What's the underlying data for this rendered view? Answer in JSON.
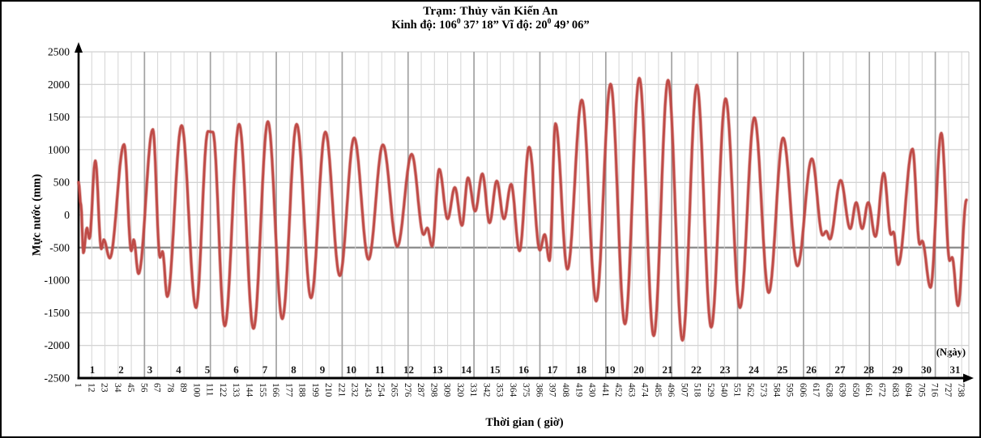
{
  "header": {
    "title": "Trạm:  Thủy văn Kiến An",
    "subtitle": {
      "pre": "Kinh độ: 106",
      "sup1": "0",
      "mid": " 37’ 18” Vĩ độ:  20",
      "sup2": "0",
      "end": " 49’ 06”"
    }
  },
  "y_axis": {
    "title": "Mực nước (mm)",
    "ticks": [
      2500,
      2000,
      1500,
      1000,
      500,
      0,
      -500,
      -1000,
      -1500,
      -2000,
      -2500
    ],
    "emphasized_gridline_value": -500
  },
  "x_axis": {
    "title": "Thời gian ( giờ)",
    "day_unit_label": "(Ngày)",
    "hour_ticks": [
      1,
      12,
      23,
      34,
      45,
      56,
      67,
      78,
      89,
      100,
      111,
      122,
      133,
      144,
      155,
      166,
      177,
      188,
      199,
      210,
      221,
      232,
      243,
      254,
      265,
      276,
      287,
      298,
      309,
      320,
      331,
      342,
      353,
      364,
      375,
      386,
      397,
      408,
      419,
      430,
      441,
      452,
      463,
      474,
      485,
      496,
      507,
      518,
      529,
      540,
      551,
      562,
      573,
      584,
      595,
      606,
      617,
      628,
      639,
      650,
      661,
      672,
      683,
      694,
      705,
      716,
      727,
      738
    ],
    "day_labels": [
      1,
      2,
      3,
      4,
      5,
      6,
      7,
      8,
      9,
      10,
      11,
      12,
      13,
      14,
      15,
      16,
      17,
      18,
      19,
      20,
      21,
      22,
      23,
      24,
      25,
      26,
      27,
      28,
      29,
      30,
      31
    ]
  },
  "chart_data": {
    "type": "line",
    "title": "Trạm: Thủy văn Kiến An",
    "xlabel": "Thời gian ( giờ)",
    "ylabel": "Mực nước (mm)",
    "xlim": [
      1,
      744
    ],
    "ylim": [
      -2500,
      2500
    ],
    "x_tick_interval_hours": 11,
    "x_major_grid_every_ticks": 5,
    "y_tick_interval": 500,
    "grid": true,
    "legend": false,
    "line_color": "#bf4b47",
    "grid_minor_color": "#d4d4d4",
    "grid_major_color": "#a2a2a2",
    "grid_emphasis_color": "#8f8f8f",
    "series": [
      {
        "name": "Mực nước (mm)",
        "points_hour_mm": [
          [
            1,
            500
          ],
          [
            3,
            150
          ],
          [
            5,
            -580
          ],
          [
            8,
            -200
          ],
          [
            10,
            -360
          ],
          [
            15,
            830
          ],
          [
            20,
            -520
          ],
          [
            22,
            -380
          ],
          [
            27,
            -660
          ],
          [
            39,
            1080
          ],
          [
            45,
            -550
          ],
          [
            47,
            -380
          ],
          [
            51,
            -900
          ],
          [
            63,
            1310
          ],
          [
            69,
            -650
          ],
          [
            71,
            -560
          ],
          [
            75,
            -1250
          ],
          [
            87,
            1370
          ],
          [
            99,
            -1420
          ],
          [
            109,
            1280
          ],
          [
            113,
            1270
          ],
          [
            123,
            -1700
          ],
          [
            135,
            1390
          ],
          [
            147,
            -1740
          ],
          [
            159,
            1430
          ],
          [
            171,
            -1590
          ],
          [
            183,
            1390
          ],
          [
            195,
            -1270
          ],
          [
            207,
            1270
          ],
          [
            219,
            -930
          ],
          [
            231,
            1180
          ],
          [
            243,
            -680
          ],
          [
            255,
            1075
          ],
          [
            267,
            -480
          ],
          [
            279,
            930
          ],
          [
            289,
            -300
          ],
          [
            292,
            -200
          ],
          [
            296,
            -480
          ],
          [
            302,
            700
          ],
          [
            309,
            -60
          ],
          [
            315,
            420
          ],
          [
            321,
            -160
          ],
          [
            326,
            570
          ],
          [
            332,
            60
          ],
          [
            338,
            630
          ],
          [
            344,
            -120
          ],
          [
            350,
            520
          ],
          [
            356,
            -60
          ],
          [
            362,
            470
          ],
          [
            369,
            -550
          ],
          [
            377,
            1040
          ],
          [
            386,
            -540
          ],
          [
            390,
            -300
          ],
          [
            394,
            -700
          ],
          [
            399,
            1400
          ],
          [
            409,
            -830
          ],
          [
            421,
            1760
          ],
          [
            433,
            -1320
          ],
          [
            445,
            2005
          ],
          [
            457,
            -1670
          ],
          [
            469,
            2095
          ],
          [
            481,
            -1850
          ],
          [
            493,
            2065
          ],
          [
            505,
            -1920
          ],
          [
            517,
            1990
          ],
          [
            529,
            -1720
          ],
          [
            541,
            1780
          ],
          [
            553,
            -1420
          ],
          [
            565,
            1490
          ],
          [
            577,
            -1190
          ],
          [
            589,
            1180
          ],
          [
            601,
            -780
          ],
          [
            613,
            860
          ],
          [
            622,
            -310
          ],
          [
            625,
            -250
          ],
          [
            628,
            -370
          ],
          [
            637,
            530
          ],
          [
            645,
            -210
          ],
          [
            650,
            190
          ],
          [
            655,
            -210
          ],
          [
            660,
            190
          ],
          [
            666,
            -330
          ],
          [
            673,
            640
          ],
          [
            679,
            -300
          ],
          [
            681,
            -260
          ],
          [
            685,
            -760
          ],
          [
            697,
            1010
          ],
          [
            703,
            -450
          ],
          [
            705,
            -400
          ],
          [
            712,
            -1110
          ],
          [
            721,
            1253
          ],
          [
            728,
            -700
          ],
          [
            730,
            -650
          ],
          [
            735,
            -1390
          ],
          [
            742,
            230
          ]
        ]
      }
    ]
  }
}
